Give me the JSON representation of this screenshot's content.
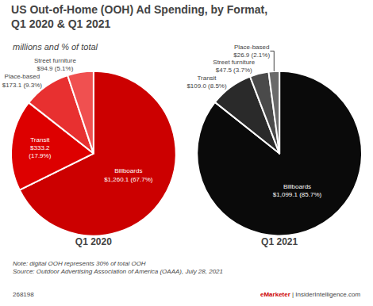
{
  "title": "US Out-of-Home (OOH) Ad Spending, by Format,\nQ1 2020 & Q1 2021",
  "subtitle": "millions and % of total",
  "note": "Note: digital OOH represents 30% of total OOH\nSource: Outdoor Advertising Association of America (OAAA), July 28, 2021",
  "footer": [
    {
      "text": "268198"
    },
    {
      "text": "eMarketer",
      "color": "#cc0000"
    },
    {
      "text": " | InsiderIntelligence.com"
    }
  ],
  "chart_data": [
    {
      "type": "pie",
      "title": "Q1 2020",
      "categories": [
        "Billboards",
        "Transit",
        "Place-based",
        "Street furniture"
      ],
      "values": [
        67.7,
        17.9,
        9.3,
        5.1
      ],
      "value_labels": [
        "Billboards\n$1,260.1 (67.7%)",
        "Transit\n$333.2\n(17.9%)",
        "Place-based\n$173.1 (9.3%)",
        "Street furniture\n$94.9 (5.1%)"
      ],
      "colors": [
        "#cc0000",
        "#dd0000",
        "#e83030",
        "#f05050"
      ],
      "data_labels": true
    },
    {
      "type": "pie",
      "title": "Q1 2021",
      "categories": [
        "Billboards",
        "Transit",
        "Street furniture",
        "Place-based"
      ],
      "values": [
        85.7,
        8.5,
        3.7,
        2.1
      ],
      "value_labels": [
        "Billboards\n$1,099.1 (85.7%)",
        "Transit\n$109.0 (8.5%)",
        "Street furniture\n$47.5 (3.7%)",
        "Place-based\n$26.9 (2.1%)"
      ],
      "colors": [
        "#0a0a0a",
        "#2a2a2a",
        "#4a4a4a",
        "#6a6a6a"
      ],
      "data_labels": true
    }
  ]
}
